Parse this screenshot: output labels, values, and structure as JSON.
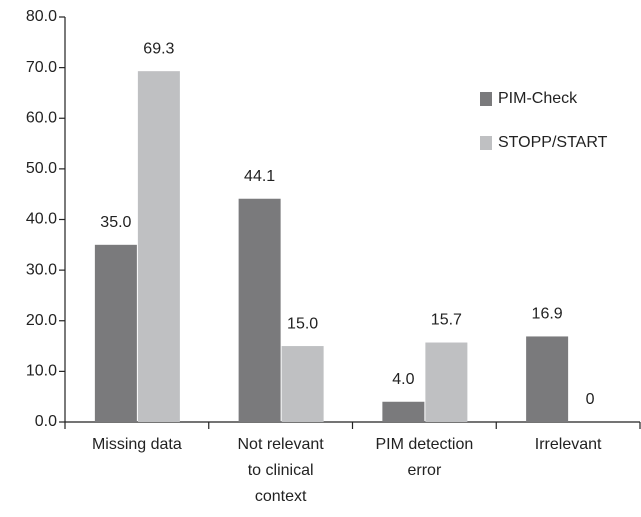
{
  "chart_data": {
    "type": "bar",
    "categories": [
      "Missing data",
      "Not relevant to clinical context",
      "PIM detection error",
      "Irrelevant"
    ],
    "series": [
      {
        "name": "PIM-Check",
        "color": "#7a7a7c",
        "values": [
          35.0,
          44.1,
          4.0,
          16.9
        ],
        "value_labels": [
          "35.0",
          "44.1",
          "4.0",
          "16.9"
        ]
      },
      {
        "name": "STOPP/START",
        "color": "#bfc0c2",
        "values": [
          69.3,
          15.0,
          15.7,
          0
        ],
        "value_labels": [
          "69.3",
          "15.0",
          "15.7",
          "0"
        ]
      }
    ],
    "ylim": [
      0,
      80
    ],
    "yticks": [
      {
        "value": 0,
        "label": "0.0"
      },
      {
        "value": 10,
        "label": "10.0"
      },
      {
        "value": 20,
        "label": "20.0"
      },
      {
        "value": 30,
        "label": "30.0"
      },
      {
        "value": 40,
        "label": "40.0"
      },
      {
        "value": 50,
        "label": "50.0"
      },
      {
        "value": 60,
        "label": "60.0"
      },
      {
        "value": 70,
        "label": "70.0"
      },
      {
        "value": 80,
        "label": "80.0"
      }
    ],
    "grid": false,
    "legend": "right"
  }
}
